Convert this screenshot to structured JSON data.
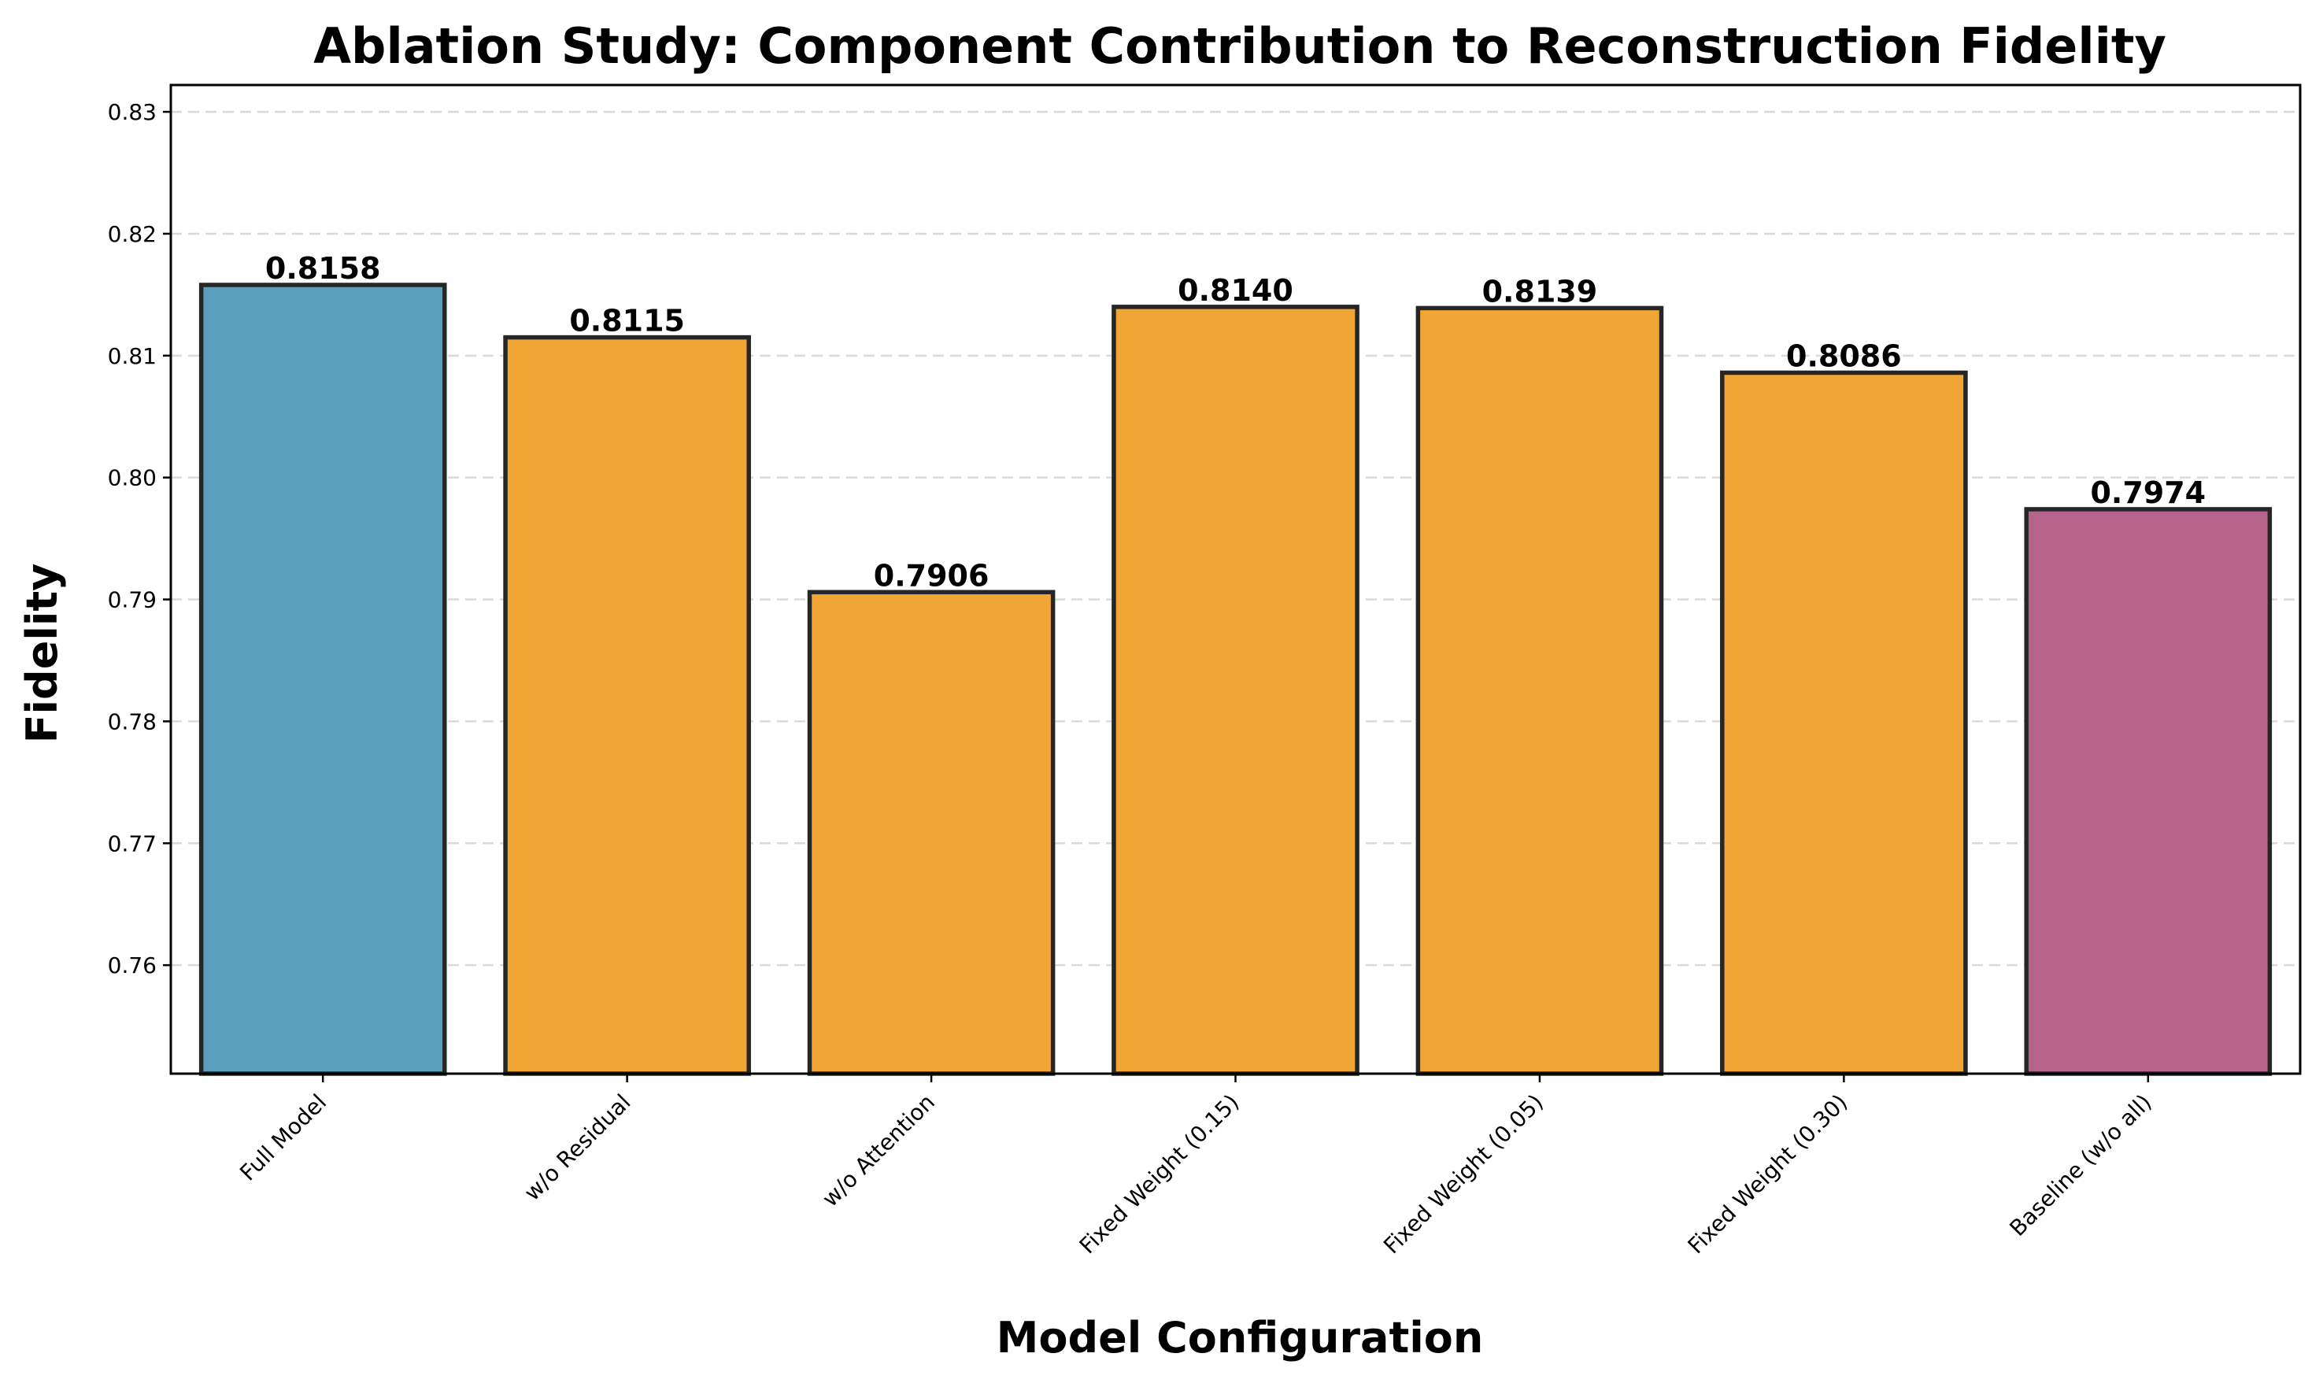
{
  "chart_data": {
    "type": "bar",
    "title": "Ablation Study: Component Contribution to Reconstruction Fidelity",
    "xlabel": "Model Configuration",
    "ylabel": "Fidelity",
    "categories": [
      "Full Model",
      "w/o Residual",
      "w/o Attention",
      "Fixed Weight (0.15)",
      "Fixed Weight (0.05)",
      "Fixed Weight (0.30)",
      "Baseline (w/o all)"
    ],
    "values": [
      0.8158,
      0.8115,
      0.7906,
      0.814,
      0.8139,
      0.8086,
      0.7974
    ],
    "value_labels": [
      "0.8158",
      "0.8115",
      "0.7906",
      "0.8140",
      "0.8139",
      "0.8086",
      "0.7974"
    ],
    "bar_colors": [
      "#5a9ebd",
      "#f0a535",
      "#f0a535",
      "#f0a535",
      "#f0a535",
      "#f0a535",
      "#b5658b"
    ],
    "ylim": [
      0.7511,
      0.8322
    ],
    "yticks": [
      0.76,
      0.77,
      0.78,
      0.79,
      0.8,
      0.81,
      0.82,
      0.83
    ],
    "ytick_labels": [
      "0.76",
      "0.77",
      "0.78",
      "0.79",
      "0.80",
      "0.81",
      "0.82",
      "0.83"
    ],
    "grid": true,
    "legend": "none"
  }
}
